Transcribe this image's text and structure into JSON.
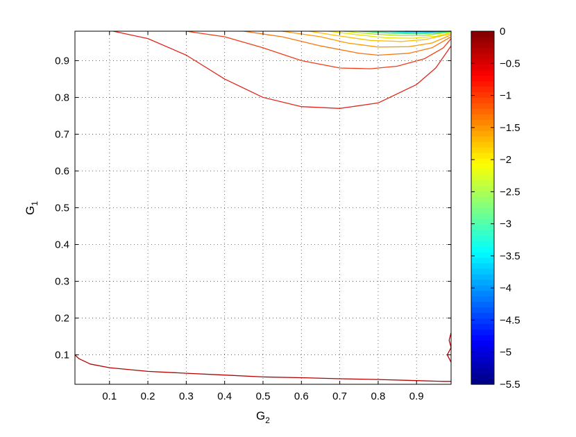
{
  "chart_data": {
    "type": "contour",
    "xlabel": {
      "base": "G",
      "sub": "2"
    },
    "ylabel": {
      "base": "G",
      "sub": "1"
    },
    "xlim": [
      0.01,
      0.99
    ],
    "ylim": [
      0.02,
      0.98
    ],
    "x_ticks": [
      0.1,
      0.2,
      0.3,
      0.4,
      0.5,
      0.6,
      0.7,
      0.8,
      0.9
    ],
    "x_tick_labels": [
      "0.1",
      "0.2",
      "0.3",
      "0.4",
      "0.5",
      "0.6",
      "0.7",
      "0.8",
      "0.9"
    ],
    "y_ticks": [
      0.1,
      0.2,
      0.3,
      0.4,
      0.5,
      0.6,
      0.7,
      0.8,
      0.9
    ],
    "y_tick_labels": [
      "0.1",
      "0.2",
      "0.3",
      "0.4",
      "0.5",
      "0.6",
      "0.7",
      "0.8",
      "0.9"
    ],
    "grid": true,
    "colorbar": {
      "range": [
        -5.5,
        0
      ],
      "colormap": "jet",
      "ticks": [
        0,
        -0.5,
        -1,
        -1.5,
        -2,
        -2.5,
        -3,
        -3.5,
        -4,
        -4.5,
        -5,
        -5.5
      ],
      "tick_labels": [
        "0",
        "−0.5",
        "−1",
        "−1.5",
        "−2",
        "−2.5",
        "−3",
        "−3.5",
        "−4",
        "−4.5",
        "−5",
        "−5.5"
      ]
    },
    "contours": [
      {
        "level": -0.25,
        "color": "#b30000",
        "points": [
          [
            0.01,
            0.1
          ],
          [
            0.02,
            0.09
          ],
          [
            0.05,
            0.075
          ],
          [
            0.1,
            0.065
          ],
          [
            0.2,
            0.055
          ],
          [
            0.3,
            0.05
          ],
          [
            0.4,
            0.045
          ],
          [
            0.5,
            0.04
          ],
          [
            0.6,
            0.038
          ],
          [
            0.7,
            0.035
          ],
          [
            0.8,
            0.033
          ],
          [
            0.9,
            0.03
          ],
          [
            0.97,
            0.028
          ],
          [
            0.99,
            0.028
          ]
        ]
      },
      {
        "level": -0.25,
        "color": "#b30000",
        "points": [
          [
            0.99,
            0.16
          ],
          [
            0.985,
            0.14
          ],
          [
            0.99,
            0.12
          ],
          [
            0.98,
            0.1
          ],
          [
            0.99,
            0.08
          ]
        ]
      },
      {
        "level": -0.5,
        "color": "#e0251b",
        "points": [
          [
            0.11,
            0.98
          ],
          [
            0.2,
            0.96
          ],
          [
            0.3,
            0.915
          ],
          [
            0.4,
            0.85
          ],
          [
            0.5,
            0.8
          ],
          [
            0.6,
            0.775
          ],
          [
            0.7,
            0.77
          ],
          [
            0.8,
            0.785
          ],
          [
            0.9,
            0.835
          ],
          [
            0.95,
            0.88
          ],
          [
            0.99,
            0.94
          ]
        ]
      },
      {
        "level": -0.75,
        "color": "#f03c14",
        "points": [
          [
            0.3,
            0.98
          ],
          [
            0.4,
            0.965
          ],
          [
            0.5,
            0.935
          ],
          [
            0.6,
            0.9
          ],
          [
            0.7,
            0.88
          ],
          [
            0.78,
            0.878
          ],
          [
            0.85,
            0.885
          ],
          [
            0.92,
            0.905
          ],
          [
            0.97,
            0.935
          ],
          [
            0.99,
            0.96
          ]
        ]
      },
      {
        "level": -1.0,
        "color": "#f5780f",
        "points": [
          [
            0.45,
            0.98
          ],
          [
            0.55,
            0.965
          ],
          [
            0.65,
            0.94
          ],
          [
            0.75,
            0.92
          ],
          [
            0.8,
            0.915
          ],
          [
            0.88,
            0.92
          ],
          [
            0.94,
            0.935
          ],
          [
            0.99,
            0.965
          ]
        ]
      },
      {
        "level": -1.25,
        "color": "#ff9900",
        "points": [
          [
            0.55,
            0.98
          ],
          [
            0.65,
            0.965
          ],
          [
            0.72,
            0.948
          ],
          [
            0.8,
            0.937
          ],
          [
            0.88,
            0.938
          ],
          [
            0.94,
            0.948
          ],
          [
            0.99,
            0.97
          ]
        ]
      },
      {
        "level": -1.5,
        "color": "#ffbf00",
        "points": [
          [
            0.62,
            0.98
          ],
          [
            0.7,
            0.967
          ],
          [
            0.78,
            0.955
          ],
          [
            0.86,
            0.952
          ],
          [
            0.92,
            0.957
          ],
          [
            0.99,
            0.973
          ]
        ]
      },
      {
        "level": -1.75,
        "color": "#e6e600",
        "points": [
          [
            0.67,
            0.98
          ],
          [
            0.75,
            0.97
          ],
          [
            0.82,
            0.962
          ],
          [
            0.89,
            0.961
          ],
          [
            0.95,
            0.966
          ],
          [
            0.99,
            0.976
          ]
        ]
      },
      {
        "level": -2.0,
        "color": "#b3e619",
        "points": [
          [
            0.71,
            0.98
          ],
          [
            0.79,
            0.972
          ],
          [
            0.86,
            0.968
          ],
          [
            0.92,
            0.968
          ],
          [
            0.99,
            0.978
          ]
        ]
      },
      {
        "level": -2.5,
        "color": "#33e673",
        "points": [
          [
            0.75,
            0.98
          ],
          [
            0.83,
            0.975
          ],
          [
            0.9,
            0.973
          ],
          [
            0.95,
            0.975
          ],
          [
            0.99,
            0.979
          ]
        ]
      },
      {
        "level": -3.0,
        "color": "#19d9cc",
        "points": [
          [
            0.79,
            0.98
          ],
          [
            0.87,
            0.977
          ],
          [
            0.93,
            0.977
          ],
          [
            0.99,
            0.98
          ]
        ]
      },
      {
        "level": -3.5,
        "color": "#3399ff",
        "points": [
          [
            0.83,
            0.98
          ],
          [
            0.9,
            0.978
          ],
          [
            0.96,
            0.979
          ],
          [
            0.99,
            0.98
          ]
        ]
      },
      {
        "level": -4.0,
        "color": "#1a4dff",
        "points": [
          [
            0.87,
            0.98
          ],
          [
            0.93,
            0.979
          ],
          [
            0.99,
            0.98
          ]
        ]
      }
    ]
  }
}
